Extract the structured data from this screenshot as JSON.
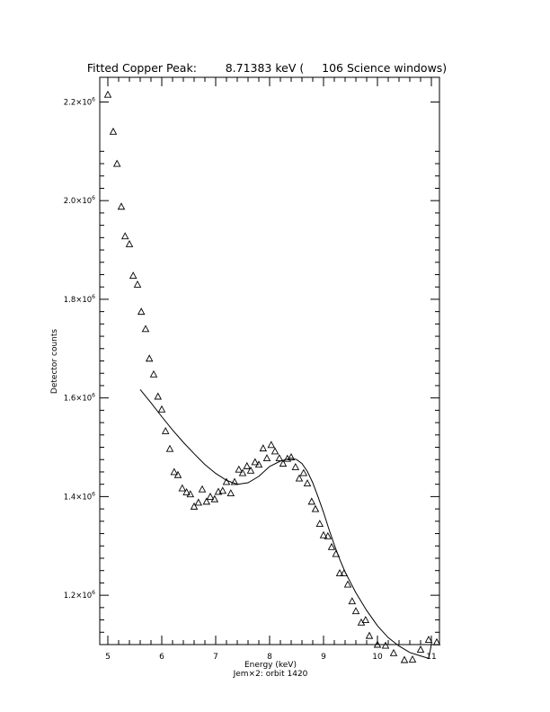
{
  "chart_data": {
    "type": "scatter",
    "title": "Fitted Copper Peak:        8.71383 keV (     106 Science windows)",
    "xlabel": "Energy (keV)",
    "ylabel": "Detector counts",
    "footer": "Jem×2: orbit 1420",
    "xlim": [
      4.85,
      11.15
    ],
    "ylim": [
      1100000,
      2250000
    ],
    "x_ticks": [
      5,
      6,
      7,
      8,
      9,
      10,
      11
    ],
    "x_tick_labels": [
      "5",
      "6",
      "7",
      "8",
      "9",
      "10",
      "11"
    ],
    "y_ticks": [
      1200000,
      1400000,
      1600000,
      1800000,
      2000000,
      2200000
    ],
    "y_tick_labels": [
      {
        "mant": "1.2×10",
        "exp": "6"
      },
      {
        "mant": "1.4×10",
        "exp": "6"
      },
      {
        "mant": "1.6×10",
        "exp": "6"
      },
      {
        "mant": "1.8×10",
        "exp": "6"
      },
      {
        "mant": "2.0×10",
        "exp": "6"
      },
      {
        "mant": "2.2×10",
        "exp": "6"
      }
    ],
    "grid": false,
    "series": [
      {
        "marker": "triangle",
        "x": [
          5.0,
          5.1,
          5.17,
          5.25,
          5.32,
          5.4,
          5.47,
          5.55,
          5.62,
          5.7,
          5.77,
          5.85,
          5.93,
          6.0,
          6.07,
          6.15,
          6.23,
          6.3,
          6.38,
          6.46,
          6.53,
          6.6,
          6.68,
          6.75,
          6.83,
          6.9,
          6.98,
          7.05,
          7.13,
          7.2,
          7.28,
          7.35,
          7.43,
          7.5,
          7.58,
          7.65,
          7.73,
          7.8,
          7.88,
          7.95,
          8.03,
          8.1,
          8.18,
          8.25,
          8.33,
          8.4,
          8.48,
          8.55,
          8.63,
          8.7,
          8.78,
          8.85,
          8.93,
          9.0,
          9.08,
          9.15,
          9.23,
          9.3,
          9.38,
          9.45,
          9.53,
          9.6,
          9.7,
          9.78,
          9.85,
          10.0,
          10.15,
          10.3,
          10.5,
          10.65,
          10.8,
          10.95,
          11.1
        ],
        "y": [
          2215000,
          2140000,
          2075000,
          1988000,
          1928000,
          1912000,
          1848000,
          1830000,
          1775000,
          1740000,
          1680000,
          1648000,
          1603000,
          1577000,
          1533000,
          1497000,
          1450000,
          1444000,
          1417000,
          1409000,
          1405000,
          1380000,
          1388000,
          1415000,
          1390000,
          1400000,
          1395000,
          1410000,
          1412000,
          1430000,
          1407000,
          1430000,
          1455000,
          1448000,
          1462000,
          1453000,
          1470000,
          1465000,
          1498000,
          1478000,
          1505000,
          1492000,
          1478000,
          1467000,
          1477000,
          1480000,
          1460000,
          1437000,
          1448000,
          1427000,
          1390000,
          1375000,
          1345000,
          1322000,
          1320000,
          1298000,
          1284000,
          1245000,
          1245000,
          1222000,
          1188000,
          1168000,
          1145000,
          1150000,
          1118000,
          1100000,
          1098000,
          1083000,
          1069000,
          1070000,
          1090000,
          1110000,
          1105000
        ]
      },
      {
        "marker": "line",
        "x": [
          5.6,
          5.8,
          6.0,
          6.2,
          6.4,
          6.6,
          6.8,
          7.0,
          7.2,
          7.4,
          7.6,
          7.8,
          8.0,
          8.2,
          8.4,
          8.5,
          8.6,
          8.7,
          8.8,
          8.9,
          9.0,
          9.1,
          9.2,
          9.3,
          9.4,
          9.6,
          9.8,
          10.0,
          10.2,
          10.4,
          10.6,
          10.8,
          10.95,
          11.0
        ],
        "y": [
          1617000,
          1590000,
          1562000,
          1535000,
          1510000,
          1487000,
          1465000,
          1447000,
          1433000,
          1425000,
          1428000,
          1441000,
          1461000,
          1472000,
          1478000,
          1475000,
          1467000,
          1451000,
          1428000,
          1399000,
          1368000,
          1334000,
          1302000,
          1273000,
          1247000,
          1205000,
          1169000,
          1138000,
          1114000,
          1097000,
          1084000,
          1077000,
          1072000,
          1100000
        ]
      }
    ]
  }
}
